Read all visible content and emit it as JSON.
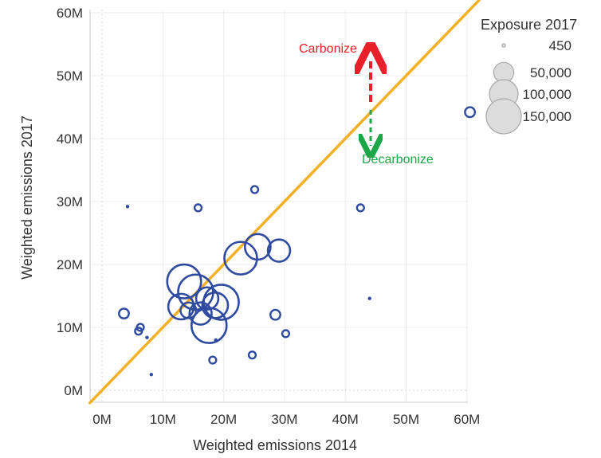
{
  "chart_data": {
    "type": "scatter",
    "xlabel": "Weighted emissions 2014",
    "ylabel": "Weighted emissions 2017",
    "x_ticks": [
      "0M",
      "10M",
      "20M",
      "30M",
      "40M",
      "50M",
      "60M"
    ],
    "y_ticks": [
      "0M",
      "10M",
      "20M",
      "30M",
      "40M",
      "50M",
      "60M"
    ],
    "xlim": [
      0,
      62
    ],
    "ylim": [
      0,
      62
    ],
    "grid": true,
    "reference_line": {
      "kind": "y = x",
      "color": "#F5B027"
    },
    "point_color": "#2F4BA0",
    "size_legend": {
      "title": "Exposure 2017",
      "placement": "top-right",
      "entries": [
        {
          "label": "450",
          "value": 450
        },
        {
          "label": "50,000",
          "value": 50000
        },
        {
          "label": "100,000",
          "value": 100000
        },
        {
          "label": "150,000",
          "value": 150000
        }
      ]
    },
    "annotations": [
      {
        "text": "Carbonize",
        "color": "#E8202A",
        "direction": "up"
      },
      {
        "text": "Decarbonize",
        "color": "#1DA648",
        "direction": "down"
      }
    ],
    "points": [
      {
        "x": 60.5,
        "y": 44.2,
        "size": 12000
      },
      {
        "x": 4.2,
        "y": 29.2,
        "size": 450
      },
      {
        "x": 15.8,
        "y": 29.0,
        "size": 6000
      },
      {
        "x": 25.1,
        "y": 31.9,
        "size": 6000
      },
      {
        "x": 42.5,
        "y": 29.0,
        "size": 6000
      },
      {
        "x": 22.8,
        "y": 21.0,
        "size": 130000
      },
      {
        "x": 25.6,
        "y": 22.8,
        "size": 80000
      },
      {
        "x": 29.1,
        "y": 22.2,
        "size": 60000
      },
      {
        "x": 13.5,
        "y": 17.3,
        "size": 140000
      },
      {
        "x": 15.4,
        "y": 15.6,
        "size": 150000
      },
      {
        "x": 17.3,
        "y": 14.6,
        "size": 60000
      },
      {
        "x": 19.6,
        "y": 14.0,
        "size": 150000
      },
      {
        "x": 18.6,
        "y": 13.5,
        "size": 80000
      },
      {
        "x": 13.0,
        "y": 13.3,
        "size": 80000
      },
      {
        "x": 14.2,
        "y": 12.7,
        "size": 30000
      },
      {
        "x": 16.2,
        "y": 12.2,
        "size": 60000
      },
      {
        "x": 17.6,
        "y": 10.3,
        "size": 150000
      },
      {
        "x": 3.6,
        "y": 12.2,
        "size": 12000
      },
      {
        "x": 6.3,
        "y": 10.0,
        "size": 6000
      },
      {
        "x": 6.0,
        "y": 9.4,
        "size": 6000
      },
      {
        "x": 7.4,
        "y": 8.4,
        "size": 450
      },
      {
        "x": 8.1,
        "y": 2.5,
        "size": 450
      },
      {
        "x": 18.7,
        "y": 8.0,
        "size": 450
      },
      {
        "x": 18.2,
        "y": 4.8,
        "size": 6000
      },
      {
        "x": 24.7,
        "y": 5.6,
        "size": 6000
      },
      {
        "x": 28.5,
        "y": 12.0,
        "size": 12000
      },
      {
        "x": 30.2,
        "y": 9.0,
        "size": 6000
      },
      {
        "x": 44.0,
        "y": 14.6,
        "size": 450
      }
    ]
  }
}
